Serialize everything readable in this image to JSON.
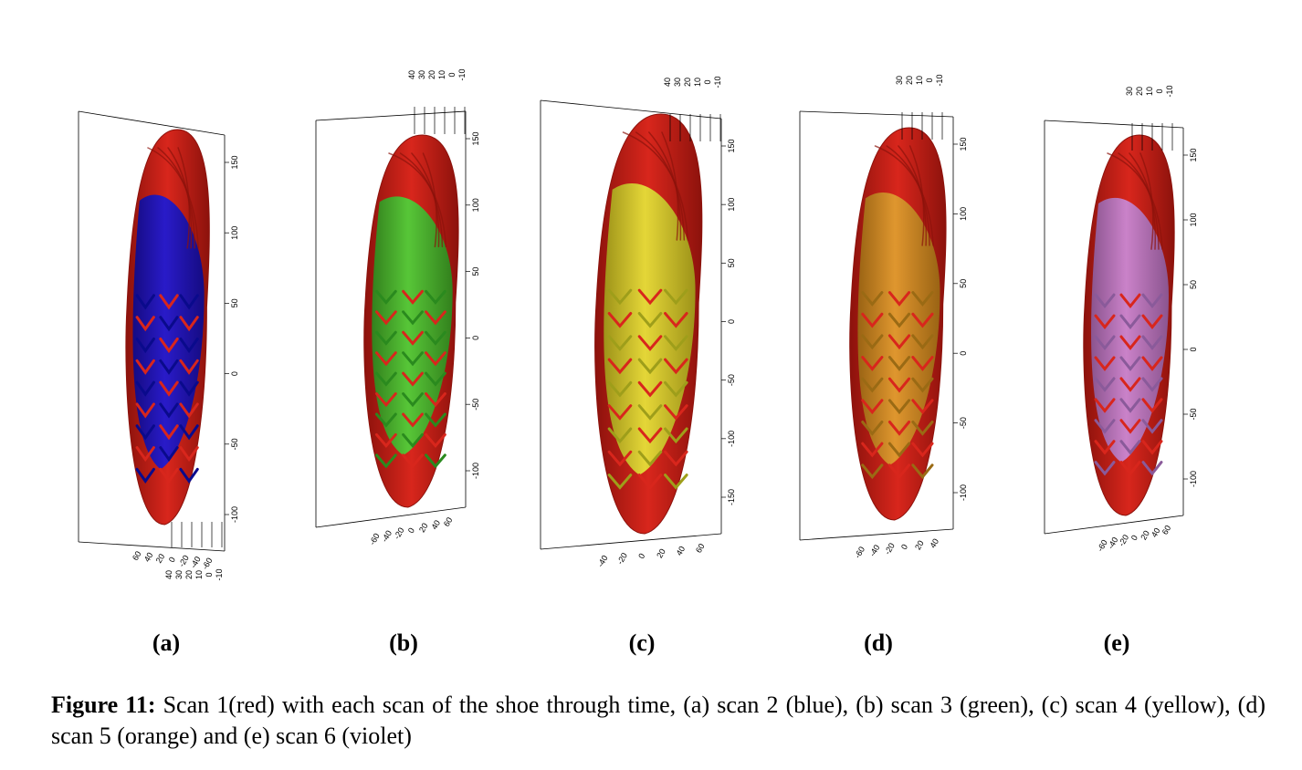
{
  "panels": [
    {
      "label": "(a)",
      "overlay_name": "blue",
      "overlay_color": "#1a1ad8",
      "overlay_dark": "#0a0a8c",
      "y_ticks": [
        "150",
        "100",
        "50",
        "0",
        "-50",
        "-100"
      ],
      "x_ticks": [
        "60",
        "40",
        "20",
        "0",
        "-20",
        "-40",
        "-60"
      ],
      "z_ticks": [
        "40",
        "30",
        "20",
        "10",
        "0",
        "-10"
      ]
    },
    {
      "label": "(b)",
      "overlay_name": "green",
      "overlay_color": "#4cd43a",
      "overlay_dark": "#2a8a1e",
      "y_ticks": [
        "150",
        "100",
        "50",
        "0",
        "-50",
        "-100"
      ],
      "x_ticks": [
        "-60",
        "-40",
        "-20",
        "0",
        "20",
        "40",
        "60"
      ],
      "z_ticks": [
        "40",
        "30",
        "20",
        "10",
        "0",
        "-10"
      ]
    },
    {
      "label": "(c)",
      "overlay_name": "yellow",
      "overlay_color": "#e6e63a",
      "overlay_dark": "#9e9e1a",
      "y_ticks": [
        "150",
        "100",
        "50",
        "0",
        "-50",
        "-100",
        "-150"
      ],
      "x_ticks": [
        "-40",
        "-20",
        "0",
        "20",
        "40",
        "60"
      ],
      "z_ticks": [
        "40",
        "30",
        "20",
        "10",
        "0",
        "-10"
      ]
    },
    {
      "label": "(d)",
      "overlay_name": "orange",
      "overlay_color": "#e0a030",
      "overlay_dark": "#9a6a14",
      "y_ticks": [
        "150",
        "100",
        "50",
        "0",
        "-50",
        "-100"
      ],
      "x_ticks": [
        "-60",
        "-40",
        "-20",
        "0",
        "20",
        "40"
      ],
      "z_ticks": [
        "30",
        "20",
        "10",
        "0",
        "-10"
      ]
    },
    {
      "label": "(e)",
      "overlay_name": "violet",
      "overlay_color": "#c98ad8",
      "overlay_dark": "#8a5a9a",
      "y_ticks": [
        "150",
        "100",
        "50",
        "0",
        "-50",
        "-100"
      ],
      "x_ticks": [
        "-60",
        "-40",
        "-20",
        "0",
        "20",
        "40",
        "60"
      ],
      "z_ticks": [
        "30",
        "20",
        "10",
        "0",
        "-10"
      ]
    }
  ],
  "base_color": "#d8261c",
  "base_dark": "#8c120c",
  "caption": {
    "title": "Figure 11:",
    "text": " Scan 1(red) with each scan of the shoe through time, (a) scan 2 (blue), (b) scan 3 (green), (c) scan 4 (yellow), (d) scan 5 (orange) and (e) scan 6 (violet)"
  }
}
